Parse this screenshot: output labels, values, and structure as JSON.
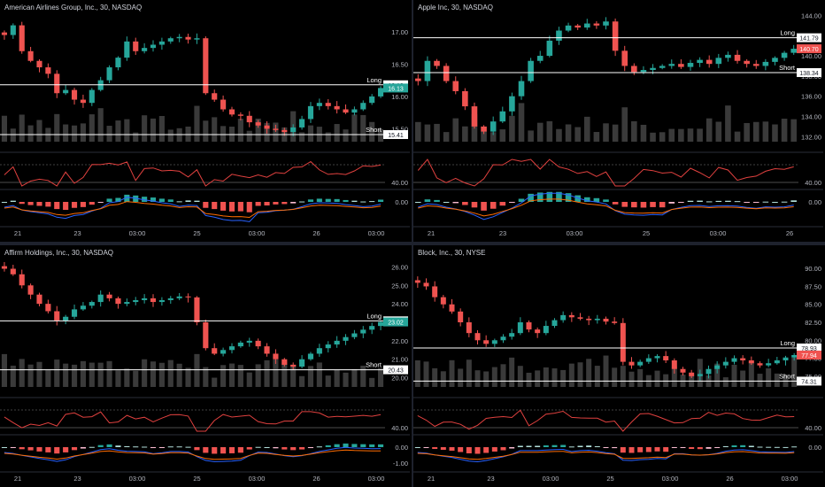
{
  "colors": {
    "up": "#26a69a",
    "down": "#ef5350",
    "volume": "#3a3a3a",
    "rsi": "#e0413f",
    "macd": "#2962ff",
    "signal": "#ff6d00",
    "hist_up": "#26a69a",
    "hist_down": "#ef5350",
    "level": "#ffffff"
  },
  "panes": [
    {
      "title": "American Airlines Group, Inc., 30, NASDAQ",
      "price_axis": {
        "min": 15.3,
        "max": 17.3,
        "ticks": [
          {
            "v": 17.0,
            "label": "17.00"
          },
          {
            "v": 16.5,
            "label": "16.50"
          },
          {
            "v": 16.0,
            "label": "16.00"
          },
          {
            "v": 15.5,
            "label": "15.50"
          }
        ]
      },
      "levels": [
        {
          "name": "Long",
          "value": 16.18,
          "label": "16.18"
        },
        {
          "name": "Short",
          "value": 15.41,
          "label": "15.41"
        }
      ],
      "last_price": {
        "value": 16.13,
        "label": "16.13",
        "color": "#26a69a"
      },
      "rsi_tick": "40.00",
      "macd_ticks": [
        "0.00"
      ],
      "time_labels": [
        "21",
        "23",
        "03:00",
        "25",
        "03:00",
        "26",
        "03:00"
      ],
      "candles": [
        16.95,
        17.1,
        16.7,
        16.55,
        16.45,
        16.35,
        16.05,
        16.1,
        15.95,
        15.9,
        16.1,
        16.25,
        16.45,
        16.6,
        16.85,
        16.7,
        16.75,
        16.8,
        16.85,
        16.9,
        16.92,
        16.88,
        16.9,
        16.05,
        15.95,
        15.8,
        15.72,
        15.7,
        15.6,
        15.55,
        15.5,
        15.48,
        15.45,
        15.52,
        15.65,
        15.85,
        15.9,
        15.85,
        15.8,
        15.75,
        15.8,
        15.9,
        16.0,
        16.13
      ]
    },
    {
      "title": "Apple Inc, 30, NASDAQ",
      "price_axis": {
        "min": 131.5,
        "max": 144.3,
        "ticks": [
          {
            "v": 144,
            "label": "144.00"
          },
          {
            "v": 142,
            "label": "142.00"
          },
          {
            "v": 140,
            "label": "140.00"
          },
          {
            "v": 138,
            "label": "138.00"
          },
          {
            "v": 136,
            "label": "136.00"
          },
          {
            "v": 134,
            "label": "134.00"
          },
          {
            "v": 132,
            "label": "132.00"
          }
        ]
      },
      "levels": [
        {
          "name": "Long",
          "value": 141.79,
          "label": "141.79"
        },
        {
          "name": "Short",
          "value": 138.34,
          "label": "138.34"
        }
      ],
      "last_price": {
        "value": 140.7,
        "label": "140.70",
        "color": "#ef5350"
      },
      "rsi_tick": "40.00",
      "macd_ticks": [
        "0.00"
      ],
      "time_labels": [
        "21",
        "23",
        "03:00",
        "25",
        "03:00",
        "26"
      ],
      "candles": [
        137.5,
        139.5,
        139.0,
        137.5,
        136.5,
        135.0,
        133.0,
        132.5,
        133.5,
        134.5,
        136.0,
        137.5,
        139.5,
        140.0,
        141.5,
        142.5,
        143.0,
        142.8,
        143.2,
        143.0,
        143.4,
        140.5,
        139.0,
        138.4,
        138.6,
        138.8,
        139.0,
        139.2,
        138.9,
        139.3,
        139.6,
        139.2,
        139.8,
        140.1,
        139.5,
        139.2,
        139.0,
        139.4,
        139.8,
        140.3,
        140.7
      ]
    },
    {
      "title": "Affirm Holdings, Inc., 30, NASDAQ",
      "price_axis": {
        "min": 19.5,
        "max": 26.5,
        "ticks": [
          {
            "v": 26,
            "label": "26.00"
          },
          {
            "v": 25,
            "label": "25.00"
          },
          {
            "v": 24,
            "label": "24.00"
          },
          {
            "v": 23,
            "label": "23.00"
          },
          {
            "v": 22,
            "label": "22.00"
          },
          {
            "v": 21,
            "label": "21.00"
          },
          {
            "v": 20,
            "label": "20.00"
          }
        ]
      },
      "levels": [
        {
          "name": "Long",
          "value": 23.08,
          "label": "23.08"
        },
        {
          "name": "Short",
          "value": 20.43,
          "label": "20.43"
        }
      ],
      "last_price": {
        "value": 23.02,
        "label": "23.02",
        "color": "#26a69a"
      },
      "rsi_tick": "40.00",
      "macd_ticks": [
        "0.00",
        "-1.00"
      ],
      "time_labels": [
        "21",
        "23",
        "03:00",
        "25",
        "03:00",
        "26",
        "03:00"
      ],
      "candles": [
        25.9,
        25.6,
        25.0,
        24.5,
        24.0,
        23.6,
        23.1,
        23.3,
        23.7,
        23.9,
        24.1,
        24.5,
        24.3,
        24.0,
        24.1,
        24.2,
        24.3,
        24.1,
        24.2,
        24.3,
        24.4,
        24.35,
        23.0,
        21.6,
        21.3,
        21.5,
        21.7,
        21.9,
        22.0,
        21.7,
        21.3,
        21.0,
        20.7,
        20.6,
        21.0,
        21.3,
        21.6,
        21.8,
        22.0,
        22.2,
        22.4,
        22.6,
        22.8,
        23.02
      ]
    },
    {
      "title": "Block, Inc., 30, NYSE",
      "price_axis": {
        "min": 73.5,
        "max": 91.5,
        "ticks": [
          {
            "v": 90,
            "label": "90.00"
          },
          {
            "v": 87.5,
            "label": "87.50"
          },
          {
            "v": 85,
            "label": "85.00"
          },
          {
            "v": 82.5,
            "label": "82.50"
          },
          {
            "v": 80,
            "label": "80.00"
          },
          {
            "v": 77.5,
            "label": "77.50"
          },
          {
            "v": 75,
            "label": "75.00"
          }
        ]
      },
      "levels": [
        {
          "name": "Long",
          "value": 78.93,
          "label": "78.93"
        },
        {
          "name": "Short",
          "value": 74.31,
          "label": "74.31"
        }
      ],
      "last_price": {
        "value": 77.94,
        "label": "77.94",
        "color": "#ef5350"
      },
      "rsi_tick": "40.00",
      "macd_ticks": [
        "0.00"
      ],
      "time_labels": [
        "21",
        "23",
        "03:00",
        "25",
        "03:00",
        "26",
        "03:00"
      ],
      "candles": [
        88.0,
        87.5,
        86.0,
        85.0,
        84.0,
        82.5,
        81.0,
        80.0,
        79.5,
        80.0,
        80.5,
        81.0,
        82.5,
        81.5,
        81.0,
        82.0,
        82.8,
        83.5,
        83.2,
        83.0,
        82.8,
        83.0,
        82.6,
        82.4,
        77.0,
        76.5,
        77.0,
        77.5,
        77.8,
        77.2,
        76.0,
        75.5,
        75.0,
        75.3,
        76.0,
        76.5,
        77.0,
        77.5,
        77.2,
        76.8,
        76.5,
        76.8,
        77.2,
        77.6,
        77.94
      ]
    }
  ]
}
